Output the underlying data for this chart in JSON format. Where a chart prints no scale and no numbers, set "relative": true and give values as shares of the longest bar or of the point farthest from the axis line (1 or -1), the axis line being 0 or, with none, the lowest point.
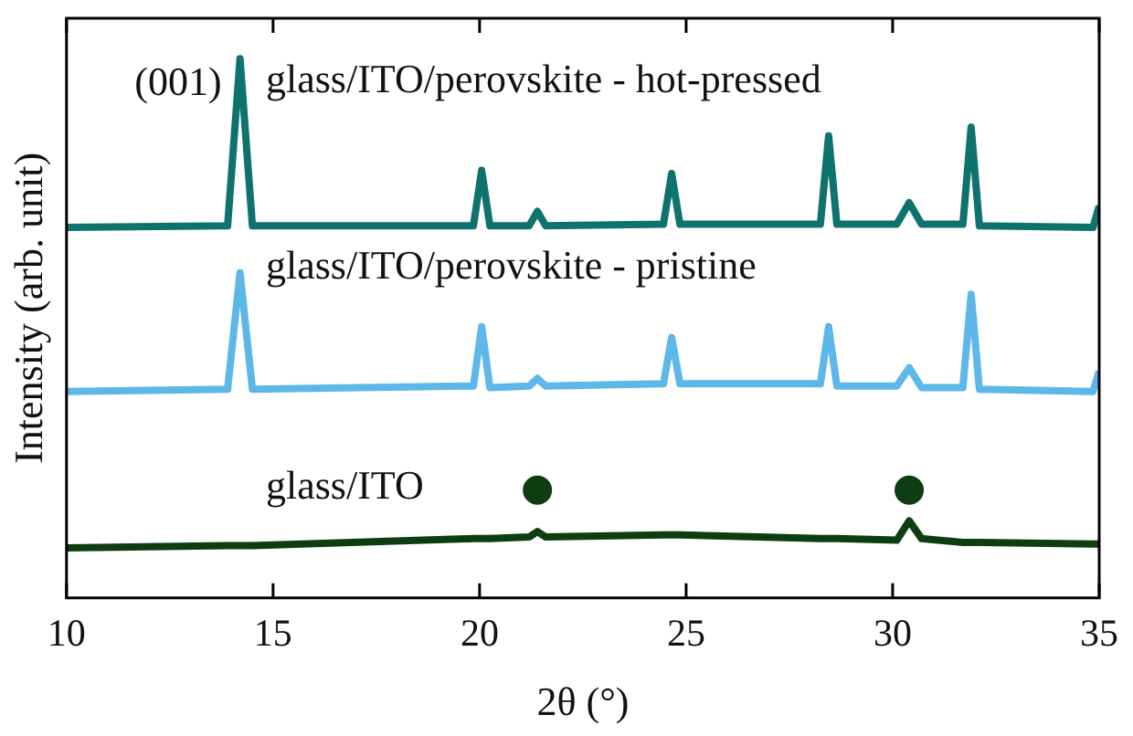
{
  "chart_data": {
    "type": "line",
    "xlabel": "2θ (°)",
    "ylabel": "Intensity (arb. unit)",
    "relative": true,
    "legend": false,
    "grid": false,
    "marker": "none",
    "xlim": [
      10,
      35
    ],
    "xticks": [
      10,
      15,
      20,
      25,
      30,
      35
    ],
    "x": [
      10,
      13.9,
      14.2,
      14.5,
      19.85,
      20.05,
      20.25,
      21.2,
      21.4,
      21.6,
      24.45,
      24.65,
      24.85,
      28.25,
      28.45,
      28.65,
      30.1,
      30.4,
      30.7,
      31.7,
      31.9,
      32.1,
      34.85,
      35
    ],
    "annotations": [
      {
        "text": "(001)",
        "x": 14.2,
        "y": 0.953
      }
    ],
    "series": [
      {
        "name": "glass/ITO/perovskite - hot-pressed",
        "color": "#0e736c",
        "values": [
          0.687,
          0.69,
          1.0,
          0.69,
          0.69,
          0.793,
          0.69,
          0.69,
          0.717,
          0.69,
          0.693,
          0.787,
          0.693,
          0.693,
          0.857,
          0.693,
          0.693,
          0.733,
          0.693,
          0.693,
          0.873,
          0.69,
          0.687,
          0.727
        ]
      },
      {
        "name": "glass/ITO/perovskite - pristine",
        "color": "#5db7e8",
        "values": [
          0.383,
          0.387,
          0.603,
          0.387,
          0.393,
          0.503,
          0.39,
          0.393,
          0.407,
          0.393,
          0.397,
          0.483,
          0.397,
          0.397,
          0.503,
          0.393,
          0.393,
          0.427,
          0.39,
          0.39,
          0.563,
          0.387,
          0.383,
          0.42
        ]
      },
      {
        "name": "glass/ITO",
        "color": "#0f3d12",
        "values": [
          0.093,
          0.097,
          0.097,
          0.097,
          0.11,
          0.11,
          0.11,
          0.113,
          0.123,
          0.113,
          0.117,
          0.117,
          0.117,
          0.11,
          0.11,
          0.11,
          0.107,
          0.143,
          0.11,
          0.103,
          0.103,
          0.103,
          0.1,
          0.1
        ]
      },
      {
        "type": "scatter",
        "marker": "circle",
        "color": "#0f3d12",
        "x": [
          21.4,
          30.4
        ],
        "values": [
          0.2,
          0.2
        ]
      }
    ]
  }
}
